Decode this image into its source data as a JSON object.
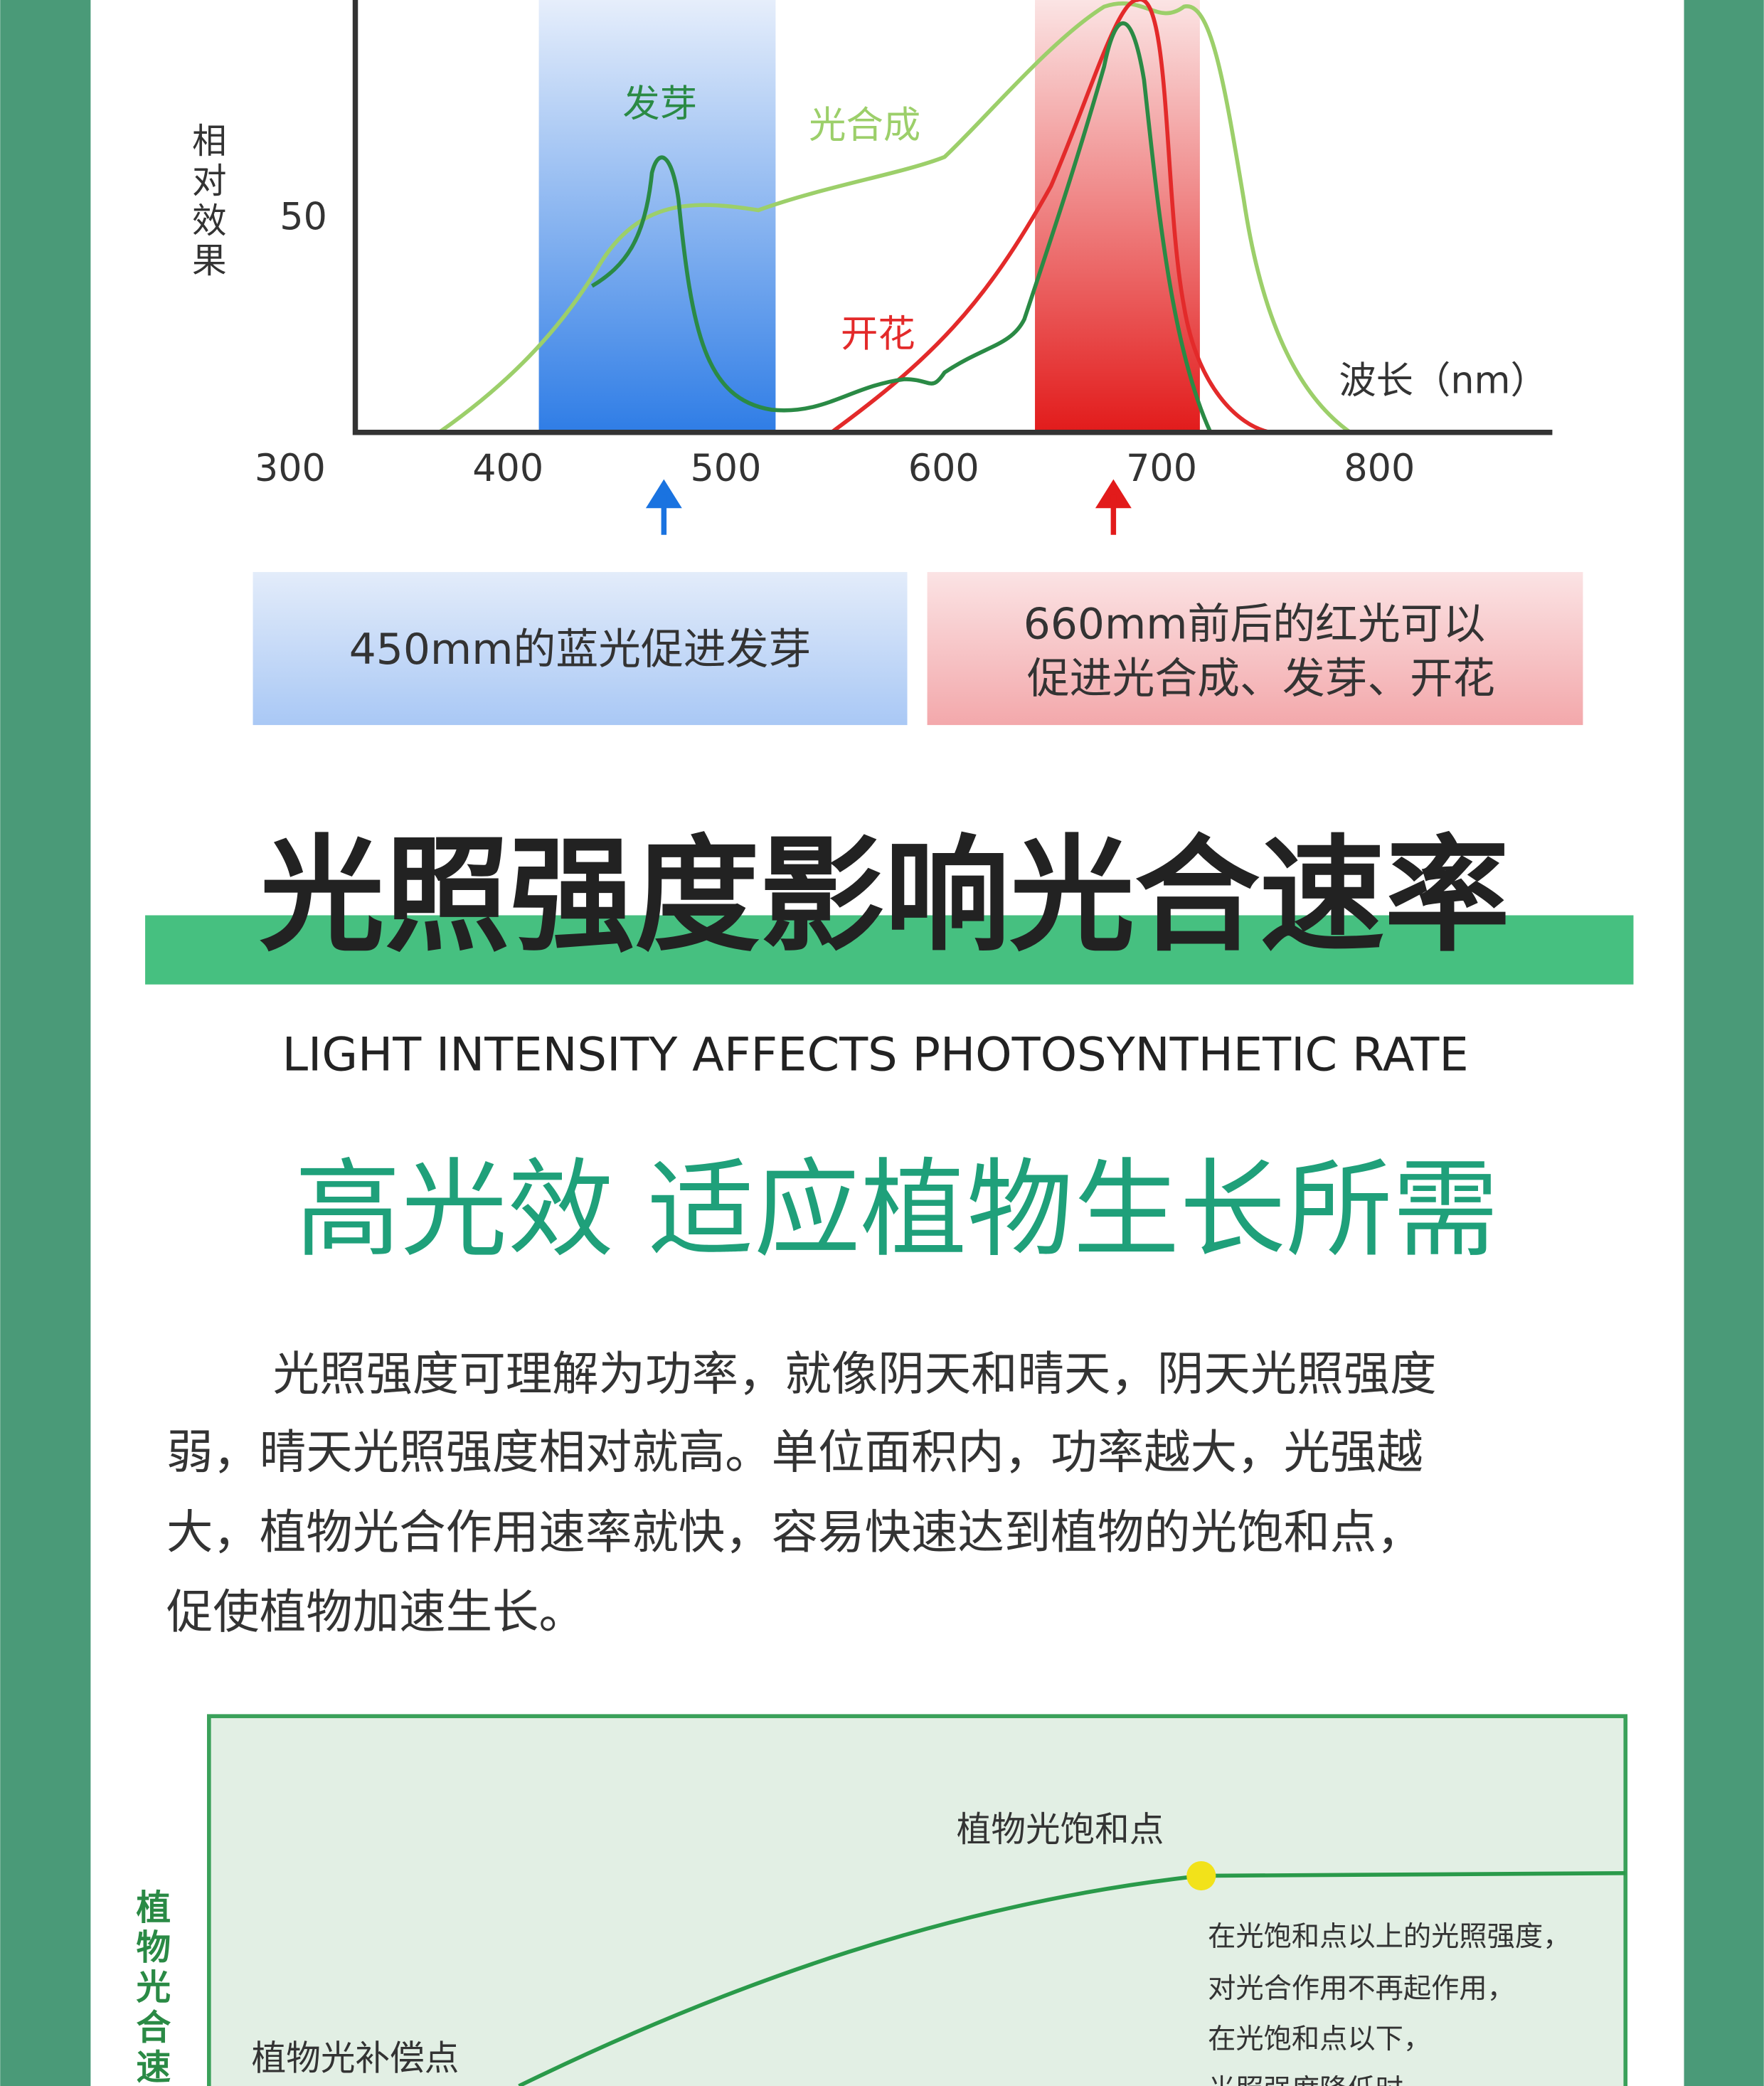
{
  "spectrum": {
    "y_label": "相对效果",
    "yticks": [
      50
    ],
    "xticks": [
      300,
      400,
      500,
      600,
      700,
      800
    ],
    "x_label": "波长（nm）",
    "curve_labels": [
      "发芽",
      "光合成",
      "开花"
    ]
  },
  "notes": {
    "blue": "450mm的蓝光促进发芽",
    "red": [
      "660mm前后的红光可以",
      "促进光合成、发芽、开花"
    ]
  },
  "section": {
    "title": "光照强度影响光合速率",
    "subtitle": "LIGHT INTENSITY AFFECTS PHOTOSYNTHETIC RATE",
    "headline": "高光效 适应植物生长所需",
    "paragraph": [
      "光照强度可理解为功率，就像阴天和晴天，阴天光照强度",
      "弱，晴天光照强度相对就高。单位面积内，功率越大，光强越",
      "大，植物光合作用速率就快，容易快速达到植物的光饱和点，",
      "促使植物加速生长。"
    ]
  },
  "curve_chart": {
    "y_label": "植物光合速",
    "saturation_label": "植物光饱和点",
    "compensation_label": "植物光补偿点",
    "annotation": [
      "在光饱和点以上的光照强度，",
      "对光合作用不再起作用，",
      "在光饱和点以下，",
      "光照强度降低时"
    ]
  }
}
